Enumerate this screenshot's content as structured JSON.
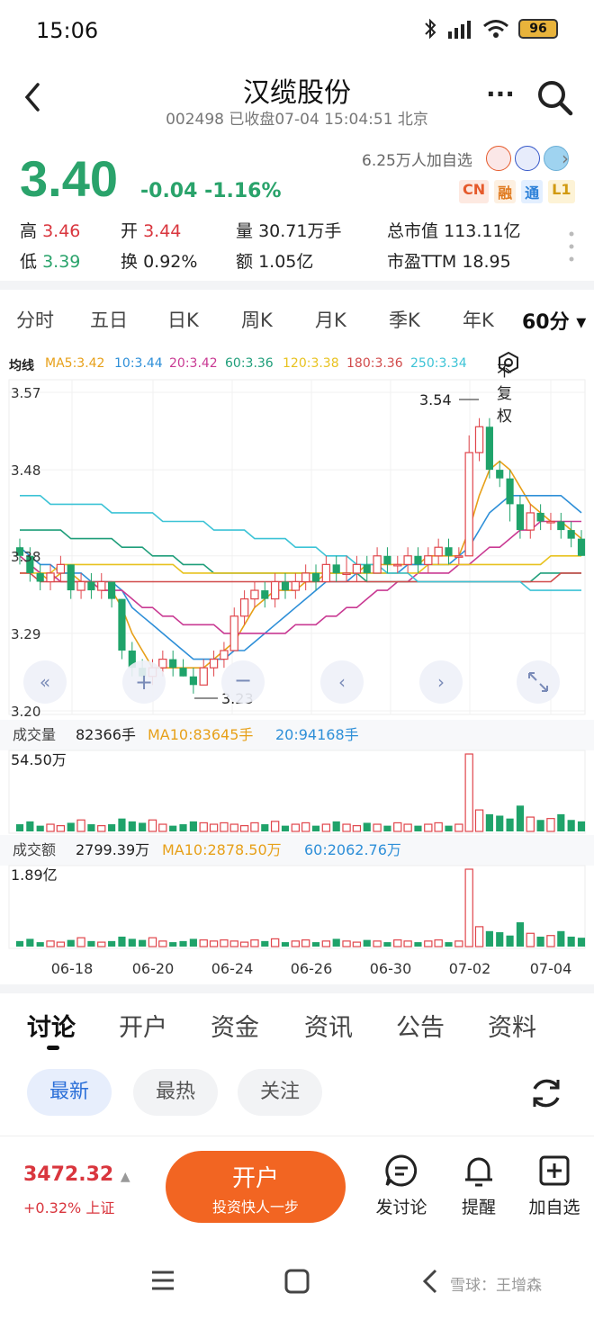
{
  "status_bar": {
    "time": "15:06",
    "battery": "96"
  },
  "header": {
    "title": "汉缆股份",
    "subtitle": "002498 已收盘07-04 15:04:51 北京"
  },
  "quote": {
    "price": "3.40",
    "change": "-0.04 -1.16%",
    "followers": "6.25万人加自选",
    "tags": [
      "CN",
      "融",
      "通",
      "L1"
    ],
    "stats": {
      "high_label": "高",
      "high": "3.46",
      "open_label": "开",
      "open": "3.44",
      "volume_label": "量",
      "volume": "30.71万手",
      "mcap_label": "总市值",
      "mcap": "113.11亿",
      "low_label": "低",
      "low": "3.39",
      "turnover_label": "换",
      "turnover": "0.92%",
      "amount_label": "额",
      "amount": "1.05亿",
      "pe_label": "市盈TTM",
      "pe": "18.95"
    }
  },
  "period_tabs": [
    "分时",
    "五日",
    "日K",
    "周K",
    "月K",
    "季K",
    "年K",
    "60分 ▾"
  ],
  "ma_legend": {
    "title": "均线",
    "items": [
      {
        "text": "MA5:3.42",
        "color": "#e7a019"
      },
      {
        "text": "10:3.44",
        "color": "#2e8fd8"
      },
      {
        "text": "20:3.42",
        "color": "#c93a93"
      },
      {
        "text": "60:3.36",
        "color": "#1f9e7a"
      },
      {
        "text": "120:3.38",
        "color": "#e8c21f"
      },
      {
        "text": "180:3.36",
        "color": "#d14b4b"
      },
      {
        "text": "250:3.34",
        "color": "#3cc3d6"
      }
    ],
    "fq_label": "不复权"
  },
  "chart_data": {
    "type": "candlestick",
    "y_ticks": [
      "3.57",
      "3.48",
      "3.38",
      "3.29",
      "3.20"
    ],
    "ylim": [
      3.2,
      3.57
    ],
    "high_marker": "3.54",
    "low_marker": "3.23",
    "x_labels": [
      "06-18",
      "06-20",
      "06-24",
      "06-26",
      "06-30",
      "07-02",
      "07-04"
    ],
    "candles": [
      {
        "o": 3.39,
        "c": 3.38,
        "h": 3.4,
        "l": 3.37
      },
      {
        "o": 3.38,
        "c": 3.36,
        "h": 3.39,
        "l": 3.35
      },
      {
        "o": 3.36,
        "c": 3.35,
        "h": 3.37,
        "l": 3.34
      },
      {
        "o": 3.35,
        "c": 3.36,
        "h": 3.37,
        "l": 3.34
      },
      {
        "o": 3.36,
        "c": 3.37,
        "h": 3.38,
        "l": 3.35
      },
      {
        "o": 3.37,
        "c": 3.34,
        "h": 3.37,
        "l": 3.33
      },
      {
        "o": 3.34,
        "c": 3.35,
        "h": 3.36,
        "l": 3.33
      },
      {
        "o": 3.35,
        "c": 3.34,
        "h": 3.36,
        "l": 3.33
      },
      {
        "o": 3.34,
        "c": 3.35,
        "h": 3.36,
        "l": 3.33
      },
      {
        "o": 3.35,
        "c": 3.33,
        "h": 3.35,
        "l": 3.32
      },
      {
        "o": 3.33,
        "c": 3.27,
        "h": 3.33,
        "l": 3.26
      },
      {
        "o": 3.27,
        "c": 3.25,
        "h": 3.28,
        "l": 3.24
      },
      {
        "o": 3.25,
        "c": 3.24,
        "h": 3.26,
        "l": 3.23
      },
      {
        "o": 3.24,
        "c": 3.25,
        "h": 3.26,
        "l": 3.23
      },
      {
        "o": 3.25,
        "c": 3.26,
        "h": 3.27,
        "l": 3.24
      },
      {
        "o": 3.26,
        "c": 3.25,
        "h": 3.27,
        "l": 3.24
      },
      {
        "o": 3.25,
        "c": 3.24,
        "h": 3.26,
        "l": 3.24
      },
      {
        "o": 3.24,
        "c": 3.23,
        "h": 3.25,
        "l": 3.22
      },
      {
        "o": 3.23,
        "c": 3.25,
        "h": 3.26,
        "l": 3.23
      },
      {
        "o": 3.25,
        "c": 3.26,
        "h": 3.27,
        "l": 3.24
      },
      {
        "o": 3.26,
        "c": 3.27,
        "h": 3.28,
        "l": 3.25
      },
      {
        "o": 3.27,
        "c": 3.31,
        "h": 3.32,
        "l": 3.27
      },
      {
        "o": 3.31,
        "c": 3.33,
        "h": 3.34,
        "l": 3.3
      },
      {
        "o": 3.33,
        "c": 3.34,
        "h": 3.35,
        "l": 3.32
      },
      {
        "o": 3.34,
        "c": 3.33,
        "h": 3.35,
        "l": 3.32
      },
      {
        "o": 3.33,
        "c": 3.35,
        "h": 3.36,
        "l": 3.32
      },
      {
        "o": 3.35,
        "c": 3.34,
        "h": 3.36,
        "l": 3.33
      },
      {
        "o": 3.34,
        "c": 3.35,
        "h": 3.36,
        "l": 3.33
      },
      {
        "o": 3.35,
        "c": 3.36,
        "h": 3.37,
        "l": 3.34
      },
      {
        "o": 3.36,
        "c": 3.35,
        "h": 3.37,
        "l": 3.34
      },
      {
        "o": 3.35,
        "c": 3.37,
        "h": 3.38,
        "l": 3.35
      },
      {
        "o": 3.37,
        "c": 3.36,
        "h": 3.38,
        "l": 3.35
      },
      {
        "o": 3.36,
        "c": 3.36,
        "h": 3.38,
        "l": 3.35
      },
      {
        "o": 3.36,
        "c": 3.37,
        "h": 3.38,
        "l": 3.35
      },
      {
        "o": 3.37,
        "c": 3.36,
        "h": 3.38,
        "l": 3.35
      },
      {
        "o": 3.36,
        "c": 3.38,
        "h": 3.39,
        "l": 3.36
      },
      {
        "o": 3.38,
        "c": 3.37,
        "h": 3.39,
        "l": 3.36
      },
      {
        "o": 3.37,
        "c": 3.37,
        "h": 3.38,
        "l": 3.36
      },
      {
        "o": 3.37,
        "c": 3.38,
        "h": 3.39,
        "l": 3.36
      },
      {
        "o": 3.38,
        "c": 3.37,
        "h": 3.39,
        "l": 3.36
      },
      {
        "o": 3.37,
        "c": 3.38,
        "h": 3.39,
        "l": 3.36
      },
      {
        "o": 3.38,
        "c": 3.39,
        "h": 3.4,
        "l": 3.37
      },
      {
        "o": 3.39,
        "c": 3.38,
        "h": 3.4,
        "l": 3.37
      },
      {
        "o": 3.38,
        "c": 3.38,
        "h": 3.39,
        "l": 3.37
      },
      {
        "o": 3.38,
        "c": 3.5,
        "h": 3.52,
        "l": 3.38
      },
      {
        "o": 3.5,
        "c": 3.53,
        "h": 3.54,
        "l": 3.49
      },
      {
        "o": 3.53,
        "c": 3.48,
        "h": 3.54,
        "l": 3.47
      },
      {
        "o": 3.48,
        "c": 3.47,
        "h": 3.49,
        "l": 3.46
      },
      {
        "o": 3.47,
        "c": 3.44,
        "h": 3.48,
        "l": 3.42
      },
      {
        "o": 3.44,
        "c": 3.41,
        "h": 3.45,
        "l": 3.4
      },
      {
        "o": 3.41,
        "c": 3.43,
        "h": 3.44,
        "l": 3.4
      },
      {
        "o": 3.43,
        "c": 3.42,
        "h": 3.44,
        "l": 3.41
      },
      {
        "o": 3.42,
        "c": 3.42,
        "h": 3.43,
        "l": 3.41
      },
      {
        "o": 3.42,
        "c": 3.41,
        "h": 3.43,
        "l": 3.4
      },
      {
        "o": 3.41,
        "c": 3.4,
        "h": 3.42,
        "l": 3.39
      },
      {
        "o": 3.4,
        "c": 3.38,
        "h": 3.41,
        "l": 3.38
      }
    ],
    "series": [
      {
        "color": "#e7a019",
        "values": [
          3.38,
          3.37,
          3.36,
          3.35,
          3.36,
          3.36,
          3.35,
          3.35,
          3.34,
          3.34,
          3.32,
          3.29,
          3.27,
          3.25,
          3.25,
          3.25,
          3.25,
          3.25,
          3.25,
          3.26,
          3.27,
          3.28,
          3.3,
          3.32,
          3.33,
          3.34,
          3.34,
          3.34,
          3.35,
          3.35,
          3.36,
          3.36,
          3.36,
          3.36,
          3.37,
          3.37,
          3.37,
          3.37,
          3.37,
          3.37,
          3.38,
          3.38,
          3.38,
          3.38,
          3.41,
          3.45,
          3.48,
          3.49,
          3.48,
          3.46,
          3.44,
          3.43,
          3.42,
          3.42,
          3.41,
          3.4
        ]
      },
      {
        "color": "#2e8fd8",
        "values": [
          3.39,
          3.38,
          3.37,
          3.37,
          3.36,
          3.36,
          3.36,
          3.35,
          3.35,
          3.35,
          3.34,
          3.32,
          3.31,
          3.3,
          3.29,
          3.28,
          3.27,
          3.26,
          3.26,
          3.26,
          3.26,
          3.27,
          3.27,
          3.28,
          3.29,
          3.3,
          3.31,
          3.32,
          3.33,
          3.34,
          3.35,
          3.35,
          3.35,
          3.36,
          3.36,
          3.36,
          3.36,
          3.36,
          3.37,
          3.37,
          3.37,
          3.37,
          3.37,
          3.38,
          3.39,
          3.41,
          3.43,
          3.44,
          3.45,
          3.45,
          3.45,
          3.45,
          3.45,
          3.45,
          3.44,
          3.43
        ]
      },
      {
        "color": "#c93a93",
        "values": [
          3.38,
          3.37,
          3.36,
          3.36,
          3.35,
          3.35,
          3.35,
          3.35,
          3.34,
          3.34,
          3.34,
          3.33,
          3.32,
          3.32,
          3.31,
          3.31,
          3.3,
          3.3,
          3.3,
          3.3,
          3.29,
          3.29,
          3.29,
          3.29,
          3.29,
          3.29,
          3.29,
          3.3,
          3.3,
          3.3,
          3.31,
          3.31,
          3.32,
          3.32,
          3.33,
          3.34,
          3.34,
          3.35,
          3.35,
          3.36,
          3.36,
          3.36,
          3.36,
          3.37,
          3.37,
          3.38,
          3.39,
          3.39,
          3.4,
          3.41,
          3.41,
          3.42,
          3.42,
          3.42,
          3.42,
          3.42
        ]
      },
      {
        "color": "#1f9e7a",
        "values": [
          3.41,
          3.41,
          3.41,
          3.41,
          3.41,
          3.4,
          3.4,
          3.4,
          3.4,
          3.4,
          3.39,
          3.39,
          3.39,
          3.38,
          3.38,
          3.38,
          3.37,
          3.37,
          3.37,
          3.36,
          3.36,
          3.36,
          3.36,
          3.36,
          3.36,
          3.36,
          3.36,
          3.36,
          3.36,
          3.36,
          3.36,
          3.36,
          3.36,
          3.36,
          3.35,
          3.35,
          3.35,
          3.35,
          3.35,
          3.35,
          3.35,
          3.35,
          3.35,
          3.35,
          3.35,
          3.35,
          3.35,
          3.35,
          3.35,
          3.35,
          3.35,
          3.36,
          3.36,
          3.36,
          3.36,
          3.36
        ]
      },
      {
        "color": "#e8c21f",
        "values": [
          3.36,
          3.36,
          3.36,
          3.36,
          3.37,
          3.37,
          3.37,
          3.37,
          3.37,
          3.37,
          3.37,
          3.37,
          3.37,
          3.37,
          3.37,
          3.37,
          3.36,
          3.36,
          3.36,
          3.36,
          3.36,
          3.36,
          3.36,
          3.36,
          3.36,
          3.36,
          3.36,
          3.36,
          3.36,
          3.36,
          3.36,
          3.36,
          3.36,
          3.36,
          3.36,
          3.36,
          3.36,
          3.36,
          3.36,
          3.36,
          3.37,
          3.37,
          3.37,
          3.37,
          3.37,
          3.37,
          3.37,
          3.37,
          3.37,
          3.37,
          3.37,
          3.37,
          3.38,
          3.38,
          3.38,
          3.38
        ]
      },
      {
        "color": "#d14b4b",
        "values": [
          3.36,
          3.36,
          3.35,
          3.35,
          3.35,
          3.35,
          3.35,
          3.35,
          3.35,
          3.35,
          3.35,
          3.35,
          3.35,
          3.35,
          3.35,
          3.35,
          3.35,
          3.35,
          3.35,
          3.35,
          3.35,
          3.35,
          3.35,
          3.35,
          3.35,
          3.35,
          3.35,
          3.35,
          3.35,
          3.35,
          3.35,
          3.35,
          3.35,
          3.35,
          3.35,
          3.35,
          3.35,
          3.35,
          3.35,
          3.35,
          3.35,
          3.35,
          3.35,
          3.35,
          3.35,
          3.35,
          3.35,
          3.35,
          3.35,
          3.35,
          3.35,
          3.35,
          3.35,
          3.36,
          3.36,
          3.36
        ]
      },
      {
        "color": "#3cc3d6",
        "values": [
          3.45,
          3.45,
          3.45,
          3.44,
          3.44,
          3.44,
          3.44,
          3.44,
          3.44,
          3.43,
          3.43,
          3.43,
          3.43,
          3.43,
          3.42,
          3.42,
          3.42,
          3.42,
          3.42,
          3.41,
          3.41,
          3.41,
          3.41,
          3.4,
          3.4,
          3.4,
          3.4,
          3.39,
          3.39,
          3.39,
          3.38,
          3.38,
          3.38,
          3.37,
          3.37,
          3.37,
          3.36,
          3.36,
          3.36,
          3.35,
          3.35,
          3.35,
          3.35,
          3.35,
          3.35,
          3.35,
          3.35,
          3.35,
          3.35,
          3.35,
          3.34,
          3.34,
          3.34,
          3.34,
          3.34,
          3.34
        ]
      }
    ],
    "volume_label": "成交量",
    "volume_value": "82366手",
    "volume_ma10": "MA10:83645手",
    "volume_ma20": "20:94168手",
    "volume_max": "54.50万",
    "volumes": [
      5,
      7,
      4,
      5,
      4,
      6,
      8,
      5,
      4,
      5,
      9,
      7,
      6,
      8,
      5,
      4,
      5,
      7,
      6,
      5,
      6,
      5,
      4,
      6,
      5,
      7,
      4,
      5,
      6,
      4,
      5,
      7,
      5,
      4,
      6,
      5,
      4,
      6,
      5,
      4,
      5,
      6,
      4,
      5,
      54,
      15,
      12,
      11,
      9,
      18,
      10,
      8,
      9,
      12,
      8,
      7
    ],
    "amount_label": "成交额",
    "amount_value": "2799.39万",
    "amount_ma10": "MA10:2878.50万",
    "amount_ma60": "60:2062.76万",
    "amount_max": "1.89亿",
    "amounts": [
      5,
      7,
      4,
      5,
      4,
      6,
      8,
      5,
      4,
      5,
      9,
      7,
      6,
      8,
      5,
      4,
      5,
      7,
      6,
      5,
      6,
      5,
      4,
      6,
      5,
      7,
      4,
      5,
      6,
      4,
      5,
      7,
      5,
      4,
      6,
      5,
      4,
      6,
      5,
      4,
      5,
      6,
      4,
      5,
      70,
      18,
      14,
      13,
      10,
      22,
      12,
      9,
      10,
      14,
      9,
      8
    ]
  },
  "content_tabs": [
    "讨论",
    "开户",
    "资金",
    "资讯",
    "公告",
    "资料"
  ],
  "pills": [
    "最新",
    "最热",
    "关注"
  ],
  "bottom": {
    "index_value": "3472.32",
    "index_arrow": "▲",
    "index_change": "+0.32% 上证",
    "open_main": "开户",
    "open_sub": "投资快人一步",
    "actions": [
      "发讨论",
      "提醒",
      "加自选"
    ]
  },
  "watermark": "雪球：王增森"
}
